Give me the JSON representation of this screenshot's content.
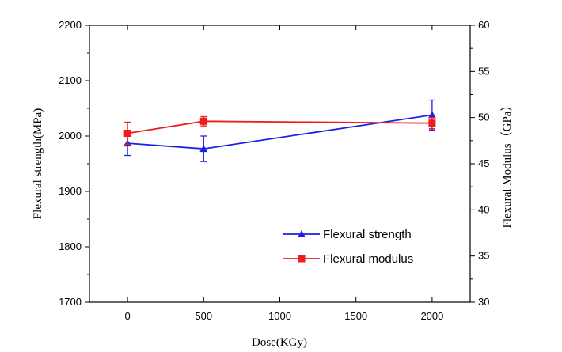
{
  "chart_data": {
    "type": "line",
    "xlabel": "Dose(KGy)",
    "ylabel_left": "Flexural strength(MPa)",
    "ylabel_right": "Flexural Modulus（GPa）",
    "xlim": [
      -250,
      2250
    ],
    "ylim_left": [
      1700,
      2200
    ],
    "ylim_right": [
      30,
      60
    ],
    "x_ticks": [
      0,
      500,
      1000,
      1500,
      2000
    ],
    "y_ticks_left": [
      1700,
      1800,
      1900,
      2000,
      2100,
      2200
    ],
    "y_ticks_right": [
      30,
      35,
      40,
      45,
      50,
      55,
      60
    ],
    "legend_position": "lower-right",
    "grid": false,
    "series": [
      {
        "name": "Flexural strength",
        "axis": "left",
        "marker": "triangle",
        "color": "#1f1fe6",
        "x": [
          0,
          500,
          2000
        ],
        "y": [
          1987,
          1977,
          2038
        ],
        "err": [
          22,
          23,
          27
        ]
      },
      {
        "name": "Flexural modulus",
        "axis": "right",
        "marker": "square",
        "color": "#ee1c1c",
        "x": [
          0,
          500,
          2000
        ],
        "y": [
          48.3,
          49.6,
          49.4
        ],
        "err": [
          1.2,
          0.5,
          0.6
        ]
      }
    ]
  }
}
